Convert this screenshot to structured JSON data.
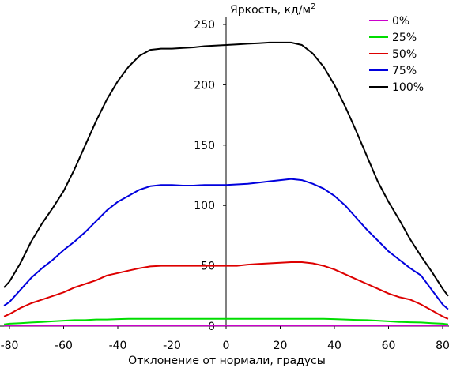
{
  "chart_data": {
    "type": "line",
    "title": "",
    "ylabel": "Яркость, кд/м",
    "ylabel_sup": "2",
    "xlabel": "Отклонение от нормали, градусы",
    "xlim": [
      -80,
      80
    ],
    "ylim": [
      0,
      250
    ],
    "x_ticks": [
      -80,
      -60,
      -40,
      -20,
      0,
      20,
      40,
      60,
      80
    ],
    "y_ticks": [
      0,
      50,
      100,
      150,
      200,
      250
    ],
    "grid": false,
    "legend_position": "top-right",
    "x": [
      -82,
      -80,
      -76,
      -72,
      -68,
      -64,
      -60,
      -56,
      -52,
      -48,
      -44,
      -40,
      -36,
      -32,
      -28,
      -24,
      -20,
      -16,
      -12,
      -8,
      -4,
      0,
      4,
      8,
      12,
      16,
      20,
      24,
      28,
      32,
      36,
      40,
      44,
      48,
      52,
      56,
      60,
      64,
      68,
      72,
      76,
      80,
      82
    ],
    "series": [
      {
        "name": "0%",
        "color": "#cc00cc",
        "values": [
          0.5,
          0.5,
          0.5,
          0.5,
          0.5,
          0.5,
          0.5,
          0.5,
          0.5,
          0.5,
          0.5,
          0.5,
          0.5,
          0.5,
          0.5,
          0.5,
          0.5,
          0.5,
          0.5,
          0.5,
          0.5,
          0.5,
          0.5,
          0.5,
          0.5,
          0.5,
          0.5,
          0.5,
          0.5,
          0.5,
          0.5,
          0.5,
          0.5,
          0.5,
          0.5,
          0.5,
          0.5,
          0.5,
          0.5,
          0.5,
          0.5,
          0.5,
          0.5
        ]
      },
      {
        "name": "25%",
        "color": "#00dd00",
        "values": [
          1.5,
          2,
          2.5,
          3,
          3.5,
          4,
          4.5,
          5,
          5,
          5.5,
          5.5,
          5.8,
          6,
          6,
          6,
          6,
          6,
          6,
          6,
          6,
          6,
          6,
          6,
          6,
          6,
          6,
          6,
          6,
          6,
          6,
          6,
          5.8,
          5.5,
          5.2,
          5,
          4.5,
          4,
          3.5,
          3.2,
          3,
          2.5,
          2,
          1.5
        ]
      },
      {
        "name": "50%",
        "color": "#dd0000",
        "values": [
          8,
          10,
          15,
          19,
          22,
          25,
          28,
          32,
          35,
          38,
          42,
          44,
          46,
          48,
          49.5,
          50,
          50,
          50,
          50,
          50,
          50,
          50,
          50,
          51,
          51.5,
          52,
          52.5,
          53,
          53,
          52,
          50,
          47,
          43,
          39,
          35,
          31,
          27,
          24,
          22,
          18,
          13,
          8,
          6
        ]
      },
      {
        "name": "75%",
        "color": "#0000dd",
        "values": [
          17,
          20,
          30,
          40,
          48,
          55,
          63,
          70,
          78,
          87,
          96,
          103,
          108,
          113,
          116,
          117,
          117,
          116.5,
          116.5,
          117,
          117,
          117,
          117.5,
          118,
          119,
          120,
          121,
          122,
          121,
          118,
          114,
          108,
          100,
          90,
          80,
          71,
          62,
          55,
          48,
          42,
          30,
          18,
          14
        ]
      },
      {
        "name": "100%",
        "color": "#000000",
        "values": [
          32,
          37,
          52,
          70,
          85,
          98,
          112,
          130,
          150,
          170,
          188,
          203,
          215,
          224,
          229,
          230,
          230,
          230.5,
          231,
          232,
          232.5,
          233,
          233.5,
          234,
          234.5,
          235,
          235,
          235,
          233,
          226,
          215,
          200,
          182,
          162,
          141,
          120,
          103,
          88,
          72,
          58,
          45,
          31,
          25
        ]
      }
    ]
  }
}
